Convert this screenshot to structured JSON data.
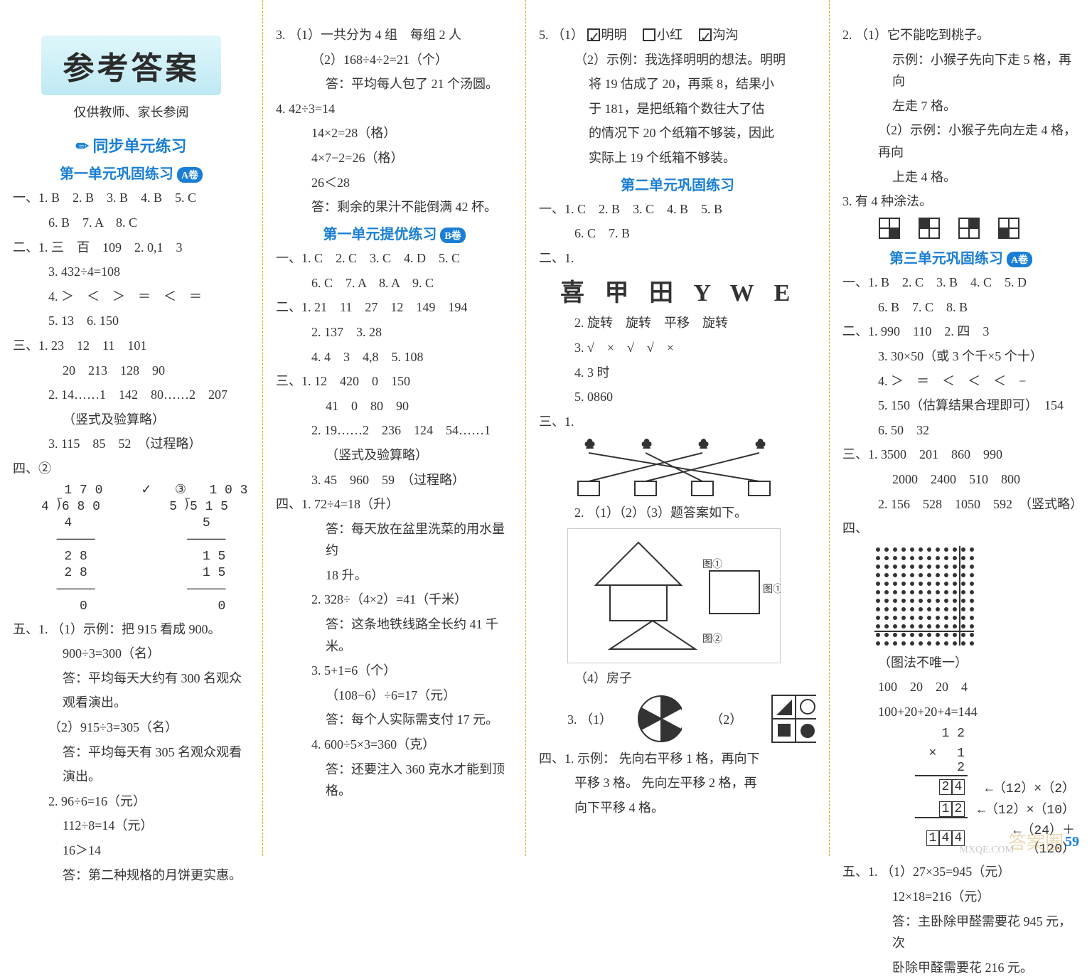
{
  "banner_title": "参考答案",
  "banner_sub": "仅供教师、家长参阅",
  "sync_title": "✏ 同步单元练习",
  "unit1a": "第一单元巩固练习",
  "unit1b": "第一单元提优练习",
  "unit2": "第二单元巩固练习",
  "unit3a": "第三单元巩固练习",
  "badge_a": "A卷",
  "badge_b": "B卷",
  "c1": {
    "l1": "一、1. B　2. B　3. B　4. B　5. C",
    "l2": "6. B　7. A　8. C",
    "l3": "二、1. 三　百　109　2. 0,1　3",
    "l4": "3. 432÷4=108",
    "l5": "4. ＞　＜　＞　＝　＜　＝",
    "l6": "5. 13　6. 150",
    "l7": "三、1. 23　12　11　101",
    "l8": "20　213　128　90",
    "l9": "2. 14……1　142　80……2　207",
    "l10": "（竖式及验算略）",
    "l11": "3. 115　85　52　（过程略）",
    "l12_head": "四、②",
    "div1": "   1 7 0     ✓   ③   1 0 3\n4 ⟌6 8 0         5 ⟌5 1 5\n   4                 5\n  ─────            ─────\n   2 8               1 5\n   2 8               1 5\n  ─────            ─────\n     0                 0",
    "l13": "五、1. （1）示例：把 915 看成 900。",
    "l14": "900÷3=300（名）",
    "l15": "答：平均每天大约有 300 名观众",
    "l16": "观看演出。",
    "l17": "（2）915÷3=305（名）",
    "l18": "答：平均每天有 305 名观众观看",
    "l19": "演出。",
    "l20": "2. 96÷6=16（元）",
    "l21": "112÷8=14（元）",
    "l22": "16＞14",
    "l23": "答：第二种规格的月饼更实惠。"
  },
  "c2": {
    "l1": "3. （1）一共分为 4 组　每组 2 人",
    "l2": "（2）168÷4÷2=21（个）",
    "l3": "答：平均每人包了 21 个汤圆。",
    "l4": "4. 42÷3=14",
    "l5": "14×2=28（格）",
    "l6": "4×7−2=26（格）",
    "l7": "26＜28",
    "l8": "答：剩余的果汁不能倒满 42 杯。",
    "b1": "一、1. C　2. C　3. C　4. D　5. C",
    "b2": "6. C　7. A　8. A　9. C",
    "b3": "二、1. 21　11　27　12　149　194",
    "b4": "2. 137　3. 28",
    "b5": "4. 4　3　4,8　5. 108",
    "b6": "三、1. 12　420　0　150",
    "b7": "41　0　80　90",
    "b8": "2. 19……2　236　124　54……1",
    "b9": "（竖式及验算略）",
    "b10": "3. 45　960　59　（过程略）",
    "b11": "四、1. 72÷4=18（升）",
    "b12": "答：每天放在盆里洗菜的用水量约",
    "b13": "18 升。",
    "b14": "2. 328÷（4×2）=41（千米）",
    "b15": "答：这条地铁线路全长约 41 千米。",
    "b16": "3. 5+1=6（个）",
    "b17": "（108−6）÷6=17（元）",
    "b18": "答：每个人实际需支付 17 元。",
    "b19": "4. 600÷5×3=360（克）",
    "b20": "答：还要注入 360 克水才能到顶格。"
  },
  "c3": {
    "l1a": "5. （1）",
    "name1": "明明",
    "name2": "小红",
    "name3": "沟沟",
    "l2": "（2）示例：我选择明明的想法。明明",
    "l3": "将 19 估成了 20，再乘 8，结果小",
    "l4": "于 181，是把纸箱个数往大了估",
    "l5": "的情况下 20 个纸箱不够装，因此",
    "l6": "实际上 19 个纸箱不够装。",
    "u2a": "一、1. C　2. B　3. C　4. B　5. B",
    "u2b": "6. C　7. B",
    "big": "喜 甲 田 Y W E",
    "u2c": "2. 旋转　旋转　平移　旋转",
    "u2d": "3. √　×　√　√　×",
    "u2e": "4. 3 时",
    "u2f": "5. 0860",
    "u2g": "三、1.",
    "u2h": "2. （1）（2）（3）题答案如下。",
    "u2i": "（4）房子",
    "u2j": "3. （1）",
    "u2j2": "（2）",
    "u2k": "四、1. 示例：    先向右平移 1 格，再向下",
    "u2l": "平移 3 格。    先向左平移 2 格，再",
    "u2m": "向下平移 4 格。",
    "lbl1": "图①",
    "lbl2": "图①",
    "lbl3": "图②"
  },
  "c4": {
    "l1": "2. （1）它不能吃到桃子。",
    "l2": "示例：小猴子先向下走 5 格，再向",
    "l3": "左走 7 格。",
    "l4": "（2）示例：小猴子先向左走 4 格，再向",
    "l5": "上走 4 格。",
    "l6": "3. 有 4 种涂法。",
    "u3a": "一、1. B　2. C　3. B　4. C　5. D",
    "u3b": "6. B　7. C　8. B",
    "u3c": "二、1. 990　110　2. 四　3",
    "u3d": "3. 30×50（或 3 个千×5 个十）",
    "u3e": "4. ＞　＝　＜　＜　＜　−",
    "u3f": "5. 150（估算结果合理即可）　154",
    "u3g": "6. 50　32",
    "u3h": "三、1. 3500　201　860　990",
    "u3i": "2000　2400　510　800",
    "u3j": "2. 156　528　1050　592　（竖式略）",
    "u3k": "四、",
    "u3l": "（图法不唯一）",
    "u3m": "100　20　20　4",
    "u3n": "100+20+20+4=144",
    "mr1": "1 2",
    "mr2": "× 　1 2",
    "mra": "←（12）×（2）",
    "mrb": "←（12）×（10）",
    "mrc": "←（24）＋（120）",
    "u3o": "五、1. （1）27×35=945（元）",
    "u3p": "12×18=216（元）",
    "u3q": "答：主卧除甲醛需要花 945 元，次",
    "u3r": "卧除甲醛需要花 216 元。"
  },
  "page_num": "59",
  "wm1": "答案圈",
  "wm2": "MXQE.COM"
}
